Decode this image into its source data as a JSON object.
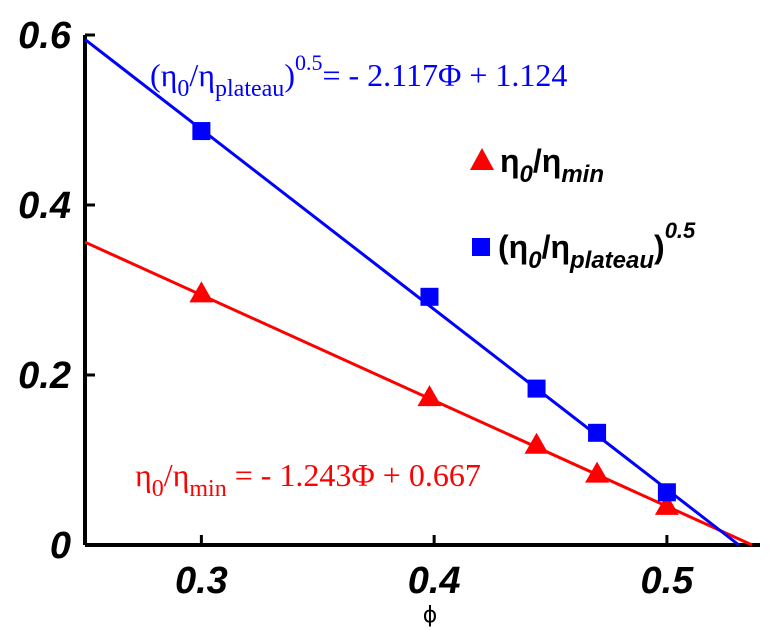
{
  "chart_data": {
    "type": "scatter",
    "xlabel": "ϕ",
    "ylabel": "",
    "xlim": [
      0.25,
      0.54
    ],
    "ylim": [
      0,
      0.6
    ],
    "xticks": [
      0.3,
      0.4,
      0.5
    ],
    "xtick_labels": [
      "0.3",
      "0.4",
      "0.5"
    ],
    "yticks": [
      0,
      0.2,
      0.4,
      0.6
    ],
    "ytick_labels": [
      "0",
      "0.2",
      "0.4",
      "0.6"
    ],
    "grid": false,
    "legend_position": "upper-right",
    "series": [
      {
        "name": "η0/ηmin",
        "marker": "triangle",
        "color": "#ff0000",
        "x": [
          0.3,
          0.398,
          0.444,
          0.47,
          0.5
        ],
        "y": [
          0.296,
          0.174,
          0.118,
          0.084,
          0.046
        ],
        "fit": {
          "slope": -1.243,
          "intercept": 0.667,
          "equation": "η0/ηmin = - 1.243Φ + 0.667"
        }
      },
      {
        "name": "(η0/ηplateau)^0.5",
        "marker": "square",
        "color": "#0000ff",
        "x": [
          0.3,
          0.398,
          0.444,
          0.47,
          0.5
        ],
        "y": [
          0.487,
          0.292,
          0.184,
          0.132,
          0.062
        ],
        "fit": {
          "slope": -2.117,
          "intercept": 1.124,
          "equation": "(η0/ηplateau)^0.5= - 2.117Φ + 1.124"
        }
      }
    ]
  },
  "legend": {
    "red": {
      "eta": "η",
      "sub0": "0",
      "slash": "/η",
      "subname": "min"
    },
    "blue": {
      "open": "(η",
      "sub0": "0",
      "slash": "/η",
      "subname": "plateau",
      "close": ")",
      "sup": "0.5"
    }
  },
  "equations": {
    "blue": {
      "open": "(η",
      "sub0": "0",
      "slash": "/η",
      "subname": "plateau",
      "close": ")",
      "sup": "0.5",
      "rhs": "= - 2.117Φ + 1.124"
    },
    "red": {
      "eta": "η",
      "sub0": "0",
      "slash": "/η",
      "subname": "min",
      "rhs": " = - 1.243Φ + 0.667"
    }
  }
}
